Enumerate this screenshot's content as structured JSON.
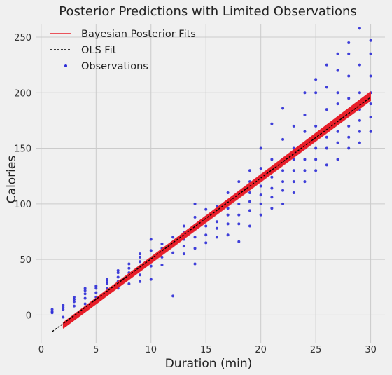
{
  "chart_data": {
    "type": "scatter",
    "title": "Posterior Predictions with Limited Observations",
    "xlabel": "Duration (min)",
    "ylabel": "Calories",
    "xlim": [
      -0.5,
      31.3
    ],
    "ylim": [
      -25,
      262
    ],
    "xticks": [
      0,
      5,
      10,
      15,
      20,
      25,
      30
    ],
    "yticks": [
      0,
      50,
      100,
      150,
      200,
      250
    ],
    "grid": true,
    "legend_position": "top-left",
    "legend": [
      {
        "label": "Bayesian Posterior Fits",
        "style": "line",
        "color": "#e8202a"
      },
      {
        "label": "OLS Fit",
        "style": "dashed",
        "color": "#000000"
      },
      {
        "label": "Observations",
        "style": "marker",
        "color": "#2b2bd6"
      }
    ],
    "ols_fit": {
      "x": [
        1,
        30
      ],
      "y": [
        -15,
        196
      ]
    },
    "posterior_fits": {
      "x_range": [
        2,
        30
      ],
      "y_at_start": [
        -12,
        -7
      ],
      "y_at_end": [
        193,
        201
      ],
      "count": 40
    },
    "observations": {
      "x": [
        1,
        1,
        1,
        2,
        2,
        2,
        2,
        3,
        3,
        3,
        3,
        4,
        4,
        4,
        4,
        4,
        5,
        5,
        5,
        5,
        5,
        6,
        6,
        6,
        6,
        6,
        7,
        7,
        7,
        7,
        7,
        8,
        8,
        8,
        8,
        8,
        9,
        9,
        9,
        9,
        9,
        9,
        10,
        10,
        10,
        10,
        10,
        11,
        11,
        11,
        11,
        11,
        12,
        12,
        12,
        12,
        13,
        13,
        13,
        13,
        13,
        14,
        14,
        14,
        14,
        14,
        14,
        15,
        15,
        15,
        15,
        15,
        16,
        16,
        16,
        16,
        16,
        17,
        17,
        17,
        17,
        17,
        17,
        18,
        18,
        18,
        18,
        18,
        18,
        19,
        19,
        19,
        19,
        19,
        19,
        20,
        20,
        20,
        20,
        20,
        20,
        20,
        21,
        21,
        21,
        21,
        21,
        21,
        22,
        22,
        22,
        22,
        22,
        22,
        22,
        23,
        23,
        23,
        23,
        23,
        23,
        24,
        24,
        24,
        24,
        24,
        24,
        24,
        25,
        25,
        25,
        25,
        25,
        25,
        25,
        26,
        26,
        26,
        26,
        26,
        26,
        26,
        27,
        27,
        27,
        27,
        27,
        27,
        27,
        27,
        28,
        28,
        28,
        28,
        28,
        28,
        28,
        28,
        29,
        29,
        29,
        29,
        29,
        29,
        29,
        30,
        30,
        30,
        30,
        30,
        30,
        30
      ],
      "y": [
        2,
        3,
        5,
        -2,
        5,
        7,
        9,
        8,
        12,
        14,
        16,
        10,
        15,
        19,
        22,
        24,
        12,
        16,
        20,
        24,
        26,
        20,
        24,
        28,
        30,
        32,
        24,
        30,
        34,
        38,
        40,
        28,
        34,
        38,
        42,
        46,
        30,
        36,
        42,
        48,
        52,
        55,
        32,
        44,
        50,
        58,
        68,
        45,
        52,
        56,
        60,
        64,
        17,
        56,
        62,
        70,
        55,
        62,
        68,
        74,
        80,
        46,
        60,
        70,
        78,
        88,
        100,
        65,
        72,
        80,
        88,
        95,
        70,
        78,
        84,
        92,
        98,
        72,
        82,
        90,
        96,
        102,
        110,
        66,
        82,
        90,
        100,
        110,
        120,
        80,
        94,
        102,
        110,
        120,
        130,
        90,
        100,
        108,
        116,
        124,
        132,
        150,
        96,
        106,
        114,
        124,
        140,
        172,
        100,
        112,
        120,
        130,
        140,
        158,
        186,
        110,
        120,
        130,
        140,
        150,
        170,
        120,
        130,
        140,
        150,
        165,
        180,
        200,
        130,
        140,
        150,
        160,
        170,
        200,
        212,
        135,
        150,
        160,
        170,
        185,
        205,
        225,
        140,
        155,
        165,
        175,
        190,
        200,
        220,
        235,
        150,
        160,
        170,
        180,
        195,
        215,
        235,
        245,
        155,
        165,
        175,
        185,
        200,
        225,
        258,
        165,
        178,
        190,
        200,
        215,
        235,
        247
      ]
    }
  }
}
